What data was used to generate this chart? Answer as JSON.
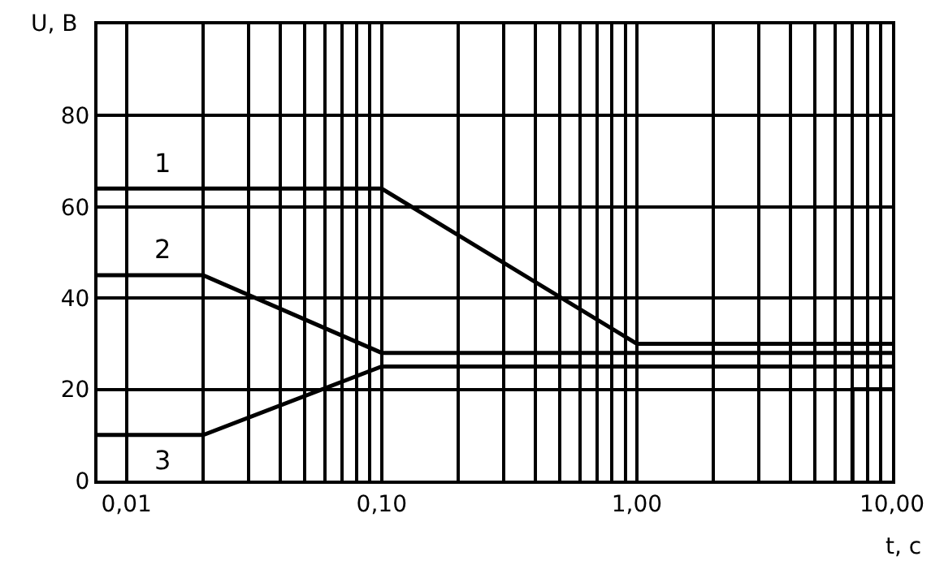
{
  "chart_data": {
    "type": "line",
    "xlabel": "t, c",
    "ylabel": "U, В",
    "log": "x",
    "xlim": [
      0.0077,
      10
    ],
    "ylim": [
      0,
      100
    ],
    "xticks": [
      {
        "value": 0.01,
        "label": "0,01"
      },
      {
        "value": 0.02,
        "label": null
      },
      {
        "value": 0.03,
        "label": null
      },
      {
        "value": 0.04,
        "label": null
      },
      {
        "value": 0.05,
        "label": null
      },
      {
        "value": 0.06,
        "label": null
      },
      {
        "value": 0.07,
        "label": null
      },
      {
        "value": 0.08,
        "label": null
      },
      {
        "value": 0.09,
        "label": null
      },
      {
        "value": 0.1,
        "label": "0,10"
      },
      {
        "value": 0.2,
        "label": null
      },
      {
        "value": 0.3,
        "label": null
      },
      {
        "value": 0.4,
        "label": null
      },
      {
        "value": 0.5,
        "label": null
      },
      {
        "value": 0.6,
        "label": null
      },
      {
        "value": 0.7,
        "label": null
      },
      {
        "value": 0.8,
        "label": null
      },
      {
        "value": 0.9,
        "label": null
      },
      {
        "value": 1,
        "label": "1,00"
      },
      {
        "value": 2,
        "label": null
      },
      {
        "value": 3,
        "label": null
      },
      {
        "value": 4,
        "label": null
      },
      {
        "value": 5,
        "label": null
      },
      {
        "value": 6,
        "label": null
      },
      {
        "value": 7,
        "label": null
      },
      {
        "value": 8,
        "label": null
      },
      {
        "value": 9,
        "label": null
      },
      {
        "value": 10,
        "label": "10,00"
      }
    ],
    "yticks": [
      0,
      20,
      40,
      60,
      80
    ],
    "grid": true,
    "series": [
      {
        "name": "1",
        "color": "#000000",
        "x": [
          0.0077,
          0.1,
          1,
          10
        ],
        "values": [
          64,
          64,
          30,
          30
        ]
      },
      {
        "name": "2",
        "color": "#000000",
        "x": [
          0.0077,
          0.02,
          0.1,
          10
        ],
        "values": [
          45,
          45,
          28,
          28
        ]
      },
      {
        "name": "3",
        "color": "#000000",
        "x": [
          0.0077,
          0.02,
          0.1,
          10
        ],
        "values": [
          10,
          10,
          25,
          25
        ]
      },
      {
        "color": "#000000",
        "x": [
          7,
          7,
          10
        ],
        "values": [
          0,
          20,
          20
        ]
      }
    ]
  }
}
